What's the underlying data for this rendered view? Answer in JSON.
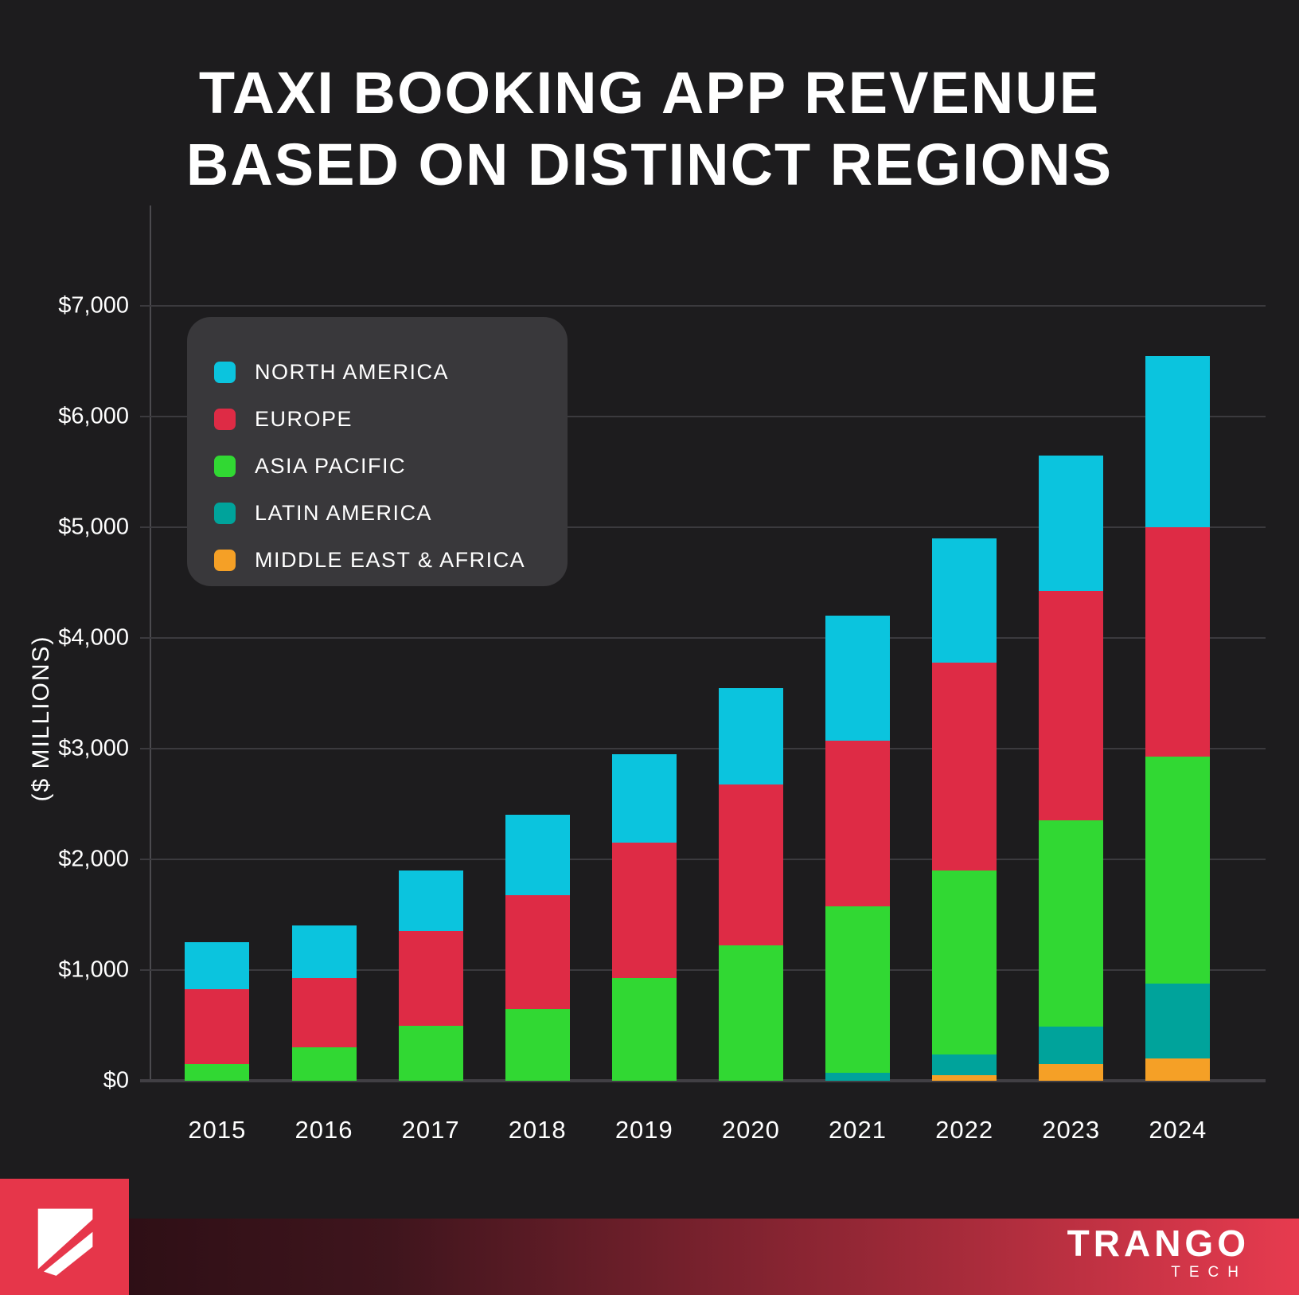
{
  "title": {
    "line1": "TAXI BOOKING APP REVENUE",
    "line2": "BASED ON DISTINCT REGIONS"
  },
  "y_axis": {
    "label": "($ MILLIONS)",
    "ticks": [
      "$0",
      "$1,000",
      "$2,000",
      "$3,000",
      "$4,000",
      "$5,000",
      "$6,000",
      "$7,000"
    ]
  },
  "chart_data": {
    "type": "bar",
    "stacked": true,
    "title": "TAXI BOOKING APP REVENUE BASED ON DISTINCT REGIONS",
    "ylabel": "($ MILLIONS)",
    "unit": "$ millions",
    "ylim": [
      0,
      7000
    ],
    "grid": true,
    "legend_position": "upper-left",
    "categories": [
      "2015",
      "2016",
      "2017",
      "2018",
      "2019",
      "2020",
      "2021",
      "2022",
      "2023",
      "2024"
    ],
    "series": [
      {
        "name": "NORTH AMERICA",
        "color": "#0bc4de",
        "values": [
          425,
          475,
          550,
          725,
          800,
          875,
          1125,
          1125,
          1225,
          1550
        ]
      },
      {
        "name": "EUROPE",
        "color": "#de2b45",
        "values": [
          675,
          625,
          850,
          1025,
          1225,
          1450,
          1500,
          1875,
          2075,
          2075
        ]
      },
      {
        "name": "ASIA PACIFIC",
        "color": "#31d833",
        "values": [
          150,
          300,
          500,
          650,
          925,
          1225,
          1500,
          1665,
          1860,
          2050
        ]
      },
      {
        "name": "LATIN AMERICA",
        "color": "#00a39b",
        "values": [
          0,
          0,
          0,
          0,
          0,
          0,
          75,
          185,
          340,
          675
        ]
      },
      {
        "name": "MIDDLE EAST & AFRICA",
        "color": "#f5a026",
        "values": [
          0,
          0,
          0,
          0,
          0,
          0,
          0,
          50,
          150,
          200
        ]
      }
    ],
    "totals": [
      1250,
      1400,
      1900,
      2400,
      2950,
      3550,
      4200,
      4900,
      5650,
      6550
    ],
    "stack_order_bottom_to_top": [
      "MIDDLE EAST & AFRICA",
      "LATIN AMERICA",
      "ASIA PACIFIC",
      "EUROPE",
      "NORTH AMERICA"
    ]
  },
  "footer": {
    "brand": "TRANGO",
    "brand_sub": "TECH"
  }
}
